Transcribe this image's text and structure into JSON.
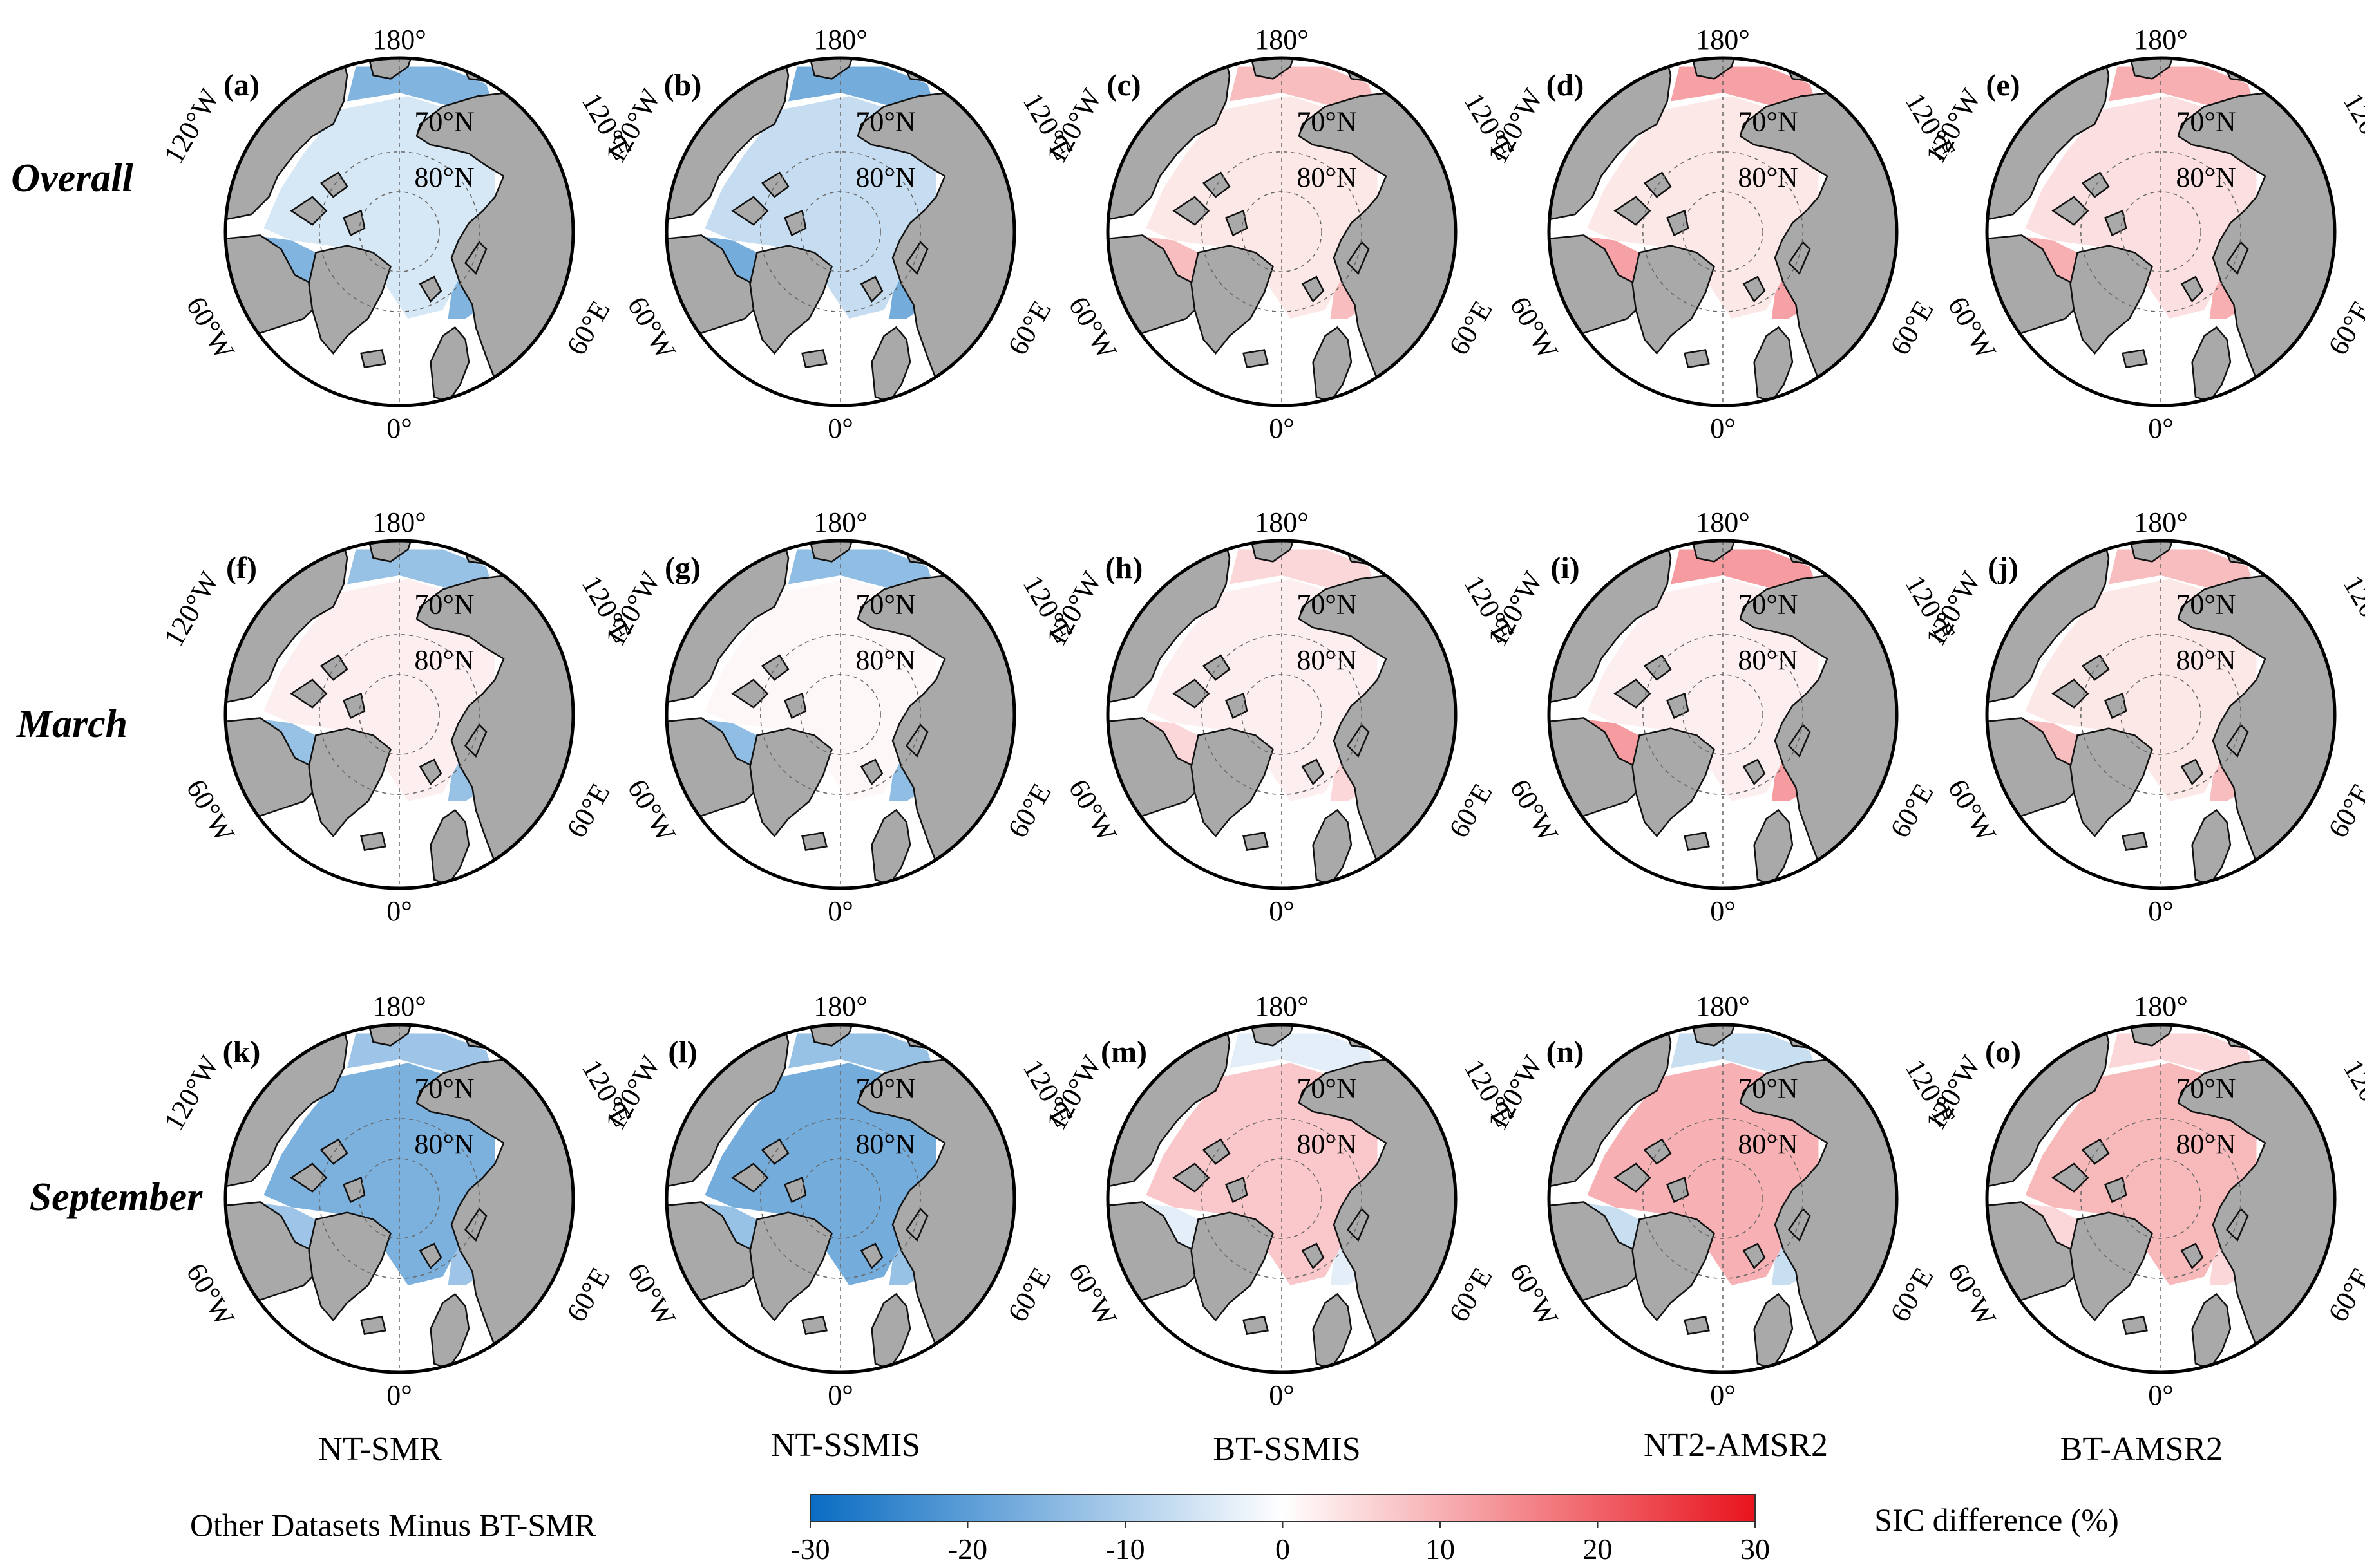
{
  "figure": {
    "panel_labels": [
      "(a)",
      "(b)",
      "(c)",
      "(d)",
      "(e)",
      "(f)",
      "(g)",
      "(h)",
      "(i)",
      "(j)",
      "(k)",
      "(l)",
      "(m)",
      "(n)",
      "(o)"
    ]
  },
  "rows": [
    {
      "label": "Overall"
    },
    {
      "label": "March"
    },
    {
      "label": "September"
    }
  ],
  "columns": [
    {
      "label": "NT-SMR"
    },
    {
      "label": "NT-SSMIS"
    },
    {
      "label": "BT-SSMIS"
    },
    {
      "label": "NT2-AMSR2"
    },
    {
      "label": "BT-AMSR2"
    }
  ],
  "map_labels": {
    "top": "180°",
    "bottom": "0°",
    "left_upper": "120°W",
    "right_upper": "120°E",
    "left_lower": "60°W",
    "right_lower": "60°E",
    "lat_70": "70°N",
    "lat_80": "80°N"
  },
  "colorbar": {
    "caption": "Other Datasets Minus BT-SMR",
    "title": "SIC difference (%)",
    "ticks": [
      "-30",
      "-20",
      "-10",
      "0",
      "10",
      "20",
      "30"
    ],
    "min": -30,
    "max": 30,
    "colors": {
      "negative": "#0a6cc2",
      "zero": "#ffffff",
      "positive": "#e8141d"
    }
  },
  "chart_data": {
    "type": "heatmap",
    "title": "Other Datasets Minus BT-SMR",
    "colorbar_label": "SIC difference (%)",
    "value_range": [
      -30,
      30
    ],
    "rows": [
      "Overall",
      "March",
      "September"
    ],
    "columns": [
      "NT-SMR",
      "NT-SSMIS",
      "BT-SSMIS",
      "NT2-AMSR2",
      "BT-AMSR2"
    ],
    "panels": [
      {
        "id": "(a)",
        "row": "Overall",
        "column": "NT-SMR",
        "central_diff": -5,
        "marginal_diff": -18
      },
      {
        "id": "(b)",
        "row": "Overall",
        "column": "NT-SSMIS",
        "central_diff": -7,
        "marginal_diff": -20
      },
      {
        "id": "(c)",
        "row": "Overall",
        "column": "BT-SSMIS",
        "central_diff": 3,
        "marginal_diff": 10
      },
      {
        "id": "(d)",
        "row": "Overall",
        "column": "NT2-AMSR2",
        "central_diff": 3,
        "marginal_diff": 14
      },
      {
        "id": "(e)",
        "row": "Overall",
        "column": "BT-AMSR2",
        "central_diff": 4,
        "marginal_diff": 12
      },
      {
        "id": "(f)",
        "row": "March",
        "column": "NT-SMR",
        "central_diff": 2,
        "marginal_diff": -15
      },
      {
        "id": "(g)",
        "row": "March",
        "column": "NT-SSMIS",
        "central_diff": 1,
        "marginal_diff": -16
      },
      {
        "id": "(h)",
        "row": "March",
        "column": "BT-SSMIS",
        "central_diff": 2,
        "marginal_diff": 6
      },
      {
        "id": "(i)",
        "row": "March",
        "column": "NT2-AMSR2",
        "central_diff": 2,
        "marginal_diff": 15
      },
      {
        "id": "(j)",
        "row": "March",
        "column": "BT-AMSR2",
        "central_diff": 3,
        "marginal_diff": 10
      },
      {
        "id": "(k)",
        "row": "September",
        "column": "NT-SMR",
        "central_diff": -16,
        "marginal_diff": -14
      },
      {
        "id": "(l)",
        "row": "September",
        "column": "NT-SSMIS",
        "central_diff": -17,
        "marginal_diff": -15
      },
      {
        "id": "(m)",
        "row": "September",
        "column": "BT-SSMIS",
        "central_diff": 7,
        "marginal_diff": -4
      },
      {
        "id": "(n)",
        "row": "September",
        "column": "NT2-AMSR2",
        "central_diff": 10,
        "marginal_diff": -8
      },
      {
        "id": "(o)",
        "row": "September",
        "column": "BT-AMSR2",
        "central_diff": 9,
        "marginal_diff": 6
      }
    ]
  }
}
